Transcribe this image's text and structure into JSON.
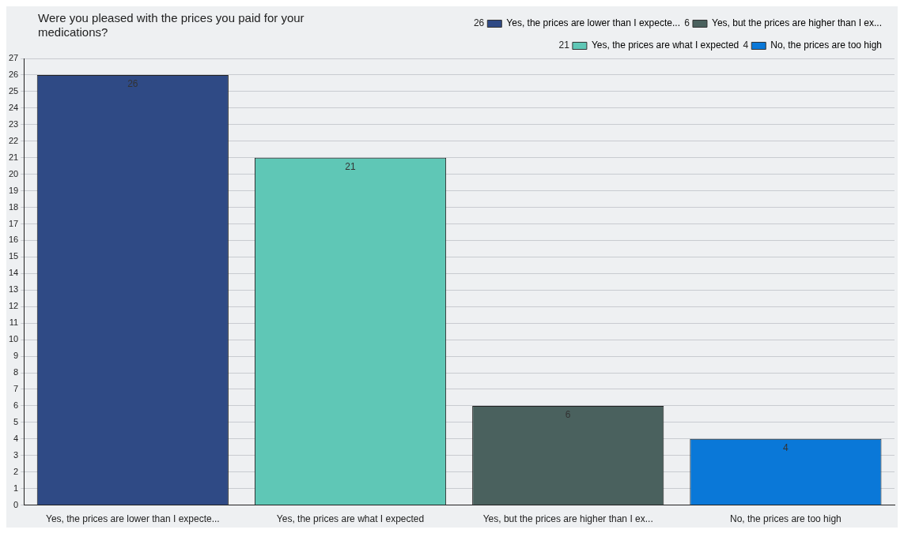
{
  "chart_data": {
    "type": "bar",
    "title": "Were you pleased with the prices you paid for your medications?",
    "categories": [
      "Yes, the prices are lower than I expecte...",
      "Yes, the prices are what I expected",
      "Yes, but the prices are higher than I ex...",
      "No, the prices are too high"
    ],
    "series": [
      {
        "name": "Yes, the prices are lower than I expecte...",
        "color": "#2f4a85",
        "values": [
          26,
          null,
          null,
          null
        ]
      },
      {
        "name": "Yes, the prices are what I expected",
        "color": "#5fc7b6",
        "values": [
          null,
          21,
          null,
          null
        ]
      },
      {
        "name": "Yes, but the prices are higher than I ex...",
        "color": "#4a615e",
        "values": [
          null,
          null,
          6,
          null
        ]
      },
      {
        "name": "No, the prices are too high",
        "color": "#0a78d8",
        "values": [
          null,
          null,
          null,
          4
        ]
      }
    ],
    "annotations": [
      "26",
      "21",
      "6",
      "4"
    ],
    "ylim": [
      0,
      27
    ],
    "yticks": [
      0,
      1,
      2,
      3,
      4,
      5,
      6,
      7,
      8,
      9,
      10,
      11,
      12,
      13,
      14,
      15,
      16,
      17,
      18,
      19,
      20,
      21,
      22,
      23,
      24,
      25,
      26,
      27
    ],
    "grid": "y",
    "legend": "top right",
    "data_labels": true
  }
}
